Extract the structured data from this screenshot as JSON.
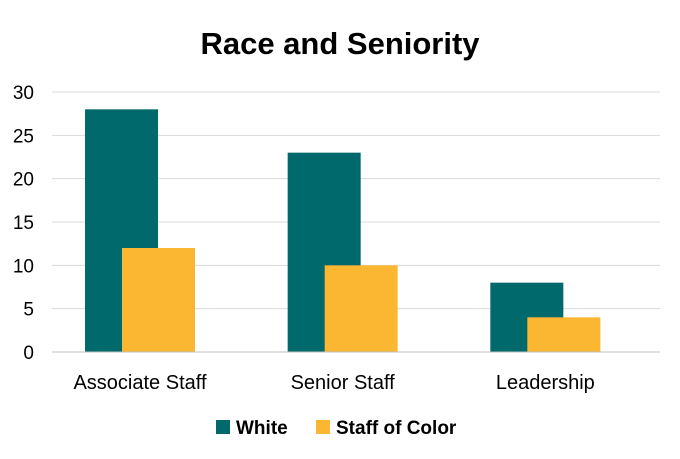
{
  "chart_data": {
    "type": "bar",
    "title": "Race and Seniority",
    "categories": [
      "Associate Staff",
      "Senior Staff",
      "Leadership"
    ],
    "series": [
      {
        "name": "White",
        "values": [
          28,
          23,
          8
        ],
        "color": "#00696b"
      },
      {
        "name": "Staff of Color",
        "values": [
          12,
          10,
          4
        ],
        "color": "#fbb632"
      }
    ],
    "ylim": [
      0,
      30
    ],
    "yticks": [
      0,
      5,
      10,
      15,
      20,
      25,
      30
    ],
    "xlabel": "",
    "ylabel": "",
    "grid": true,
    "legend_position": "bottom"
  }
}
